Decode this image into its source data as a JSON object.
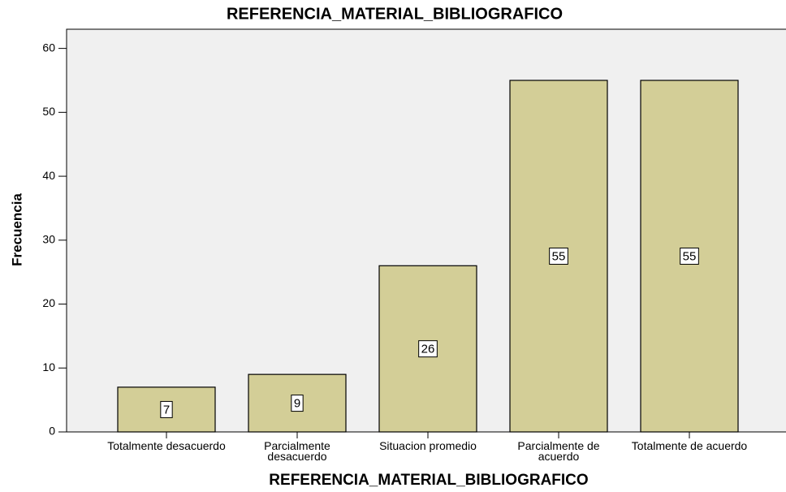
{
  "chart_data": {
    "type": "bar",
    "title": "REFERENCIA_MATERIAL_BIBLIOGRAFICO",
    "xlabel": "REFERENCIA_MATERIAL_BIBLIOGRAFICO",
    "ylabel": "Frecuencia",
    "categories": [
      "Totalmente desacuerdo",
      "Parcialmente desacuerdo",
      "Situacion promedio",
      "Parcialmente de acuerdo",
      "Totalmente de acuerdo"
    ],
    "values": [
      7,
      9,
      26,
      55,
      55
    ],
    "color": "#d3ce97",
    "ylim": [
      0,
      63
    ],
    "yticks": [
      0,
      10,
      20,
      30,
      40,
      50,
      60
    ]
  }
}
